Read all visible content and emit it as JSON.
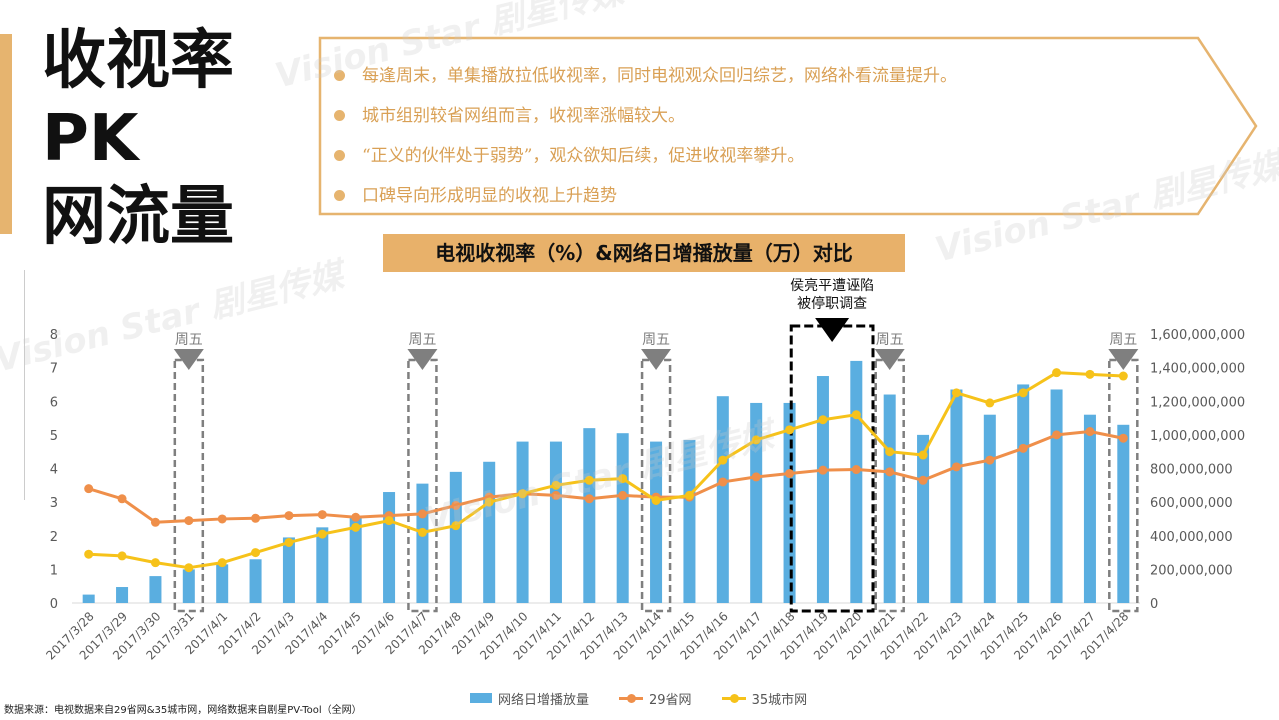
{
  "title_lines": [
    "收视率",
    "PK",
    "网流量"
  ],
  "bullets": [
    "每逢周末，单集播放拉低收视率，同时电视观众回归综艺，网络补看流量提升。",
    "城市组别较省网组而言，收视率涨幅较大。",
    "“正义的伙伴处于弱势”，观众欲知后续，促进收视率攀升。",
    "口碑导向形成明显的收视上升趋势"
  ],
  "chart_title": "电视收视率（%）&网络日增播放量（万）对比",
  "source_note": "数据来源：电视数据来自29省网&35城市网，网络数据来自剧星PV-Tool（全网）",
  "watermark": "Vision Star 剧星传媒",
  "colors": {
    "bar": "#5aaee0",
    "line29": "#ef8f4a",
    "line35": "#f6c21a",
    "accent": "#e6b46f",
    "bullet_text": "#d9a055",
    "marker": "#7f7f7f"
  },
  "chart_data": {
    "type": "bar+line",
    "categories": [
      "2017/3/28",
      "2017/3/29",
      "2017/3/30",
      "2017/3/31",
      "2017/4/1",
      "2017/4/2",
      "2017/4/3",
      "2017/4/4",
      "2017/4/5",
      "2017/4/6",
      "2017/4/7",
      "2017/4/8",
      "2017/4/9",
      "2017/4/10",
      "2017/4/11",
      "2017/4/12",
      "2017/4/13",
      "2017/4/14",
      "2017/4/15",
      "2017/4/16",
      "2017/4/17",
      "2017/4/18",
      "2017/4/19",
      "2017/4/20",
      "2017/4/21",
      "2017/4/22",
      "2017/4/23",
      "2017/4/24",
      "2017/4/25",
      "2017/4/26",
      "2017/4/27",
      "2017/4/28"
    ],
    "bar_series": {
      "name": "网络日增播放量",
      "values": [
        50000000,
        95000000,
        160000000,
        200000000,
        230000000,
        260000000,
        390000000,
        450000000,
        510000000,
        660000000,
        710000000,
        780000000,
        840000000,
        960000000,
        960000000,
        1040000000,
        1010000000,
        960000000,
        970000000,
        1230000000,
        1190000000,
        1190000000,
        1350000000,
        1440000000,
        1240000000,
        1000000000,
        1270000000,
        1120000000,
        1300000000,
        1270000000,
        1120000000,
        1060000000
      ]
    },
    "line_series": [
      {
        "name": "29省网",
        "values": [
          3.4,
          3.1,
          2.4,
          2.45,
          2.5,
          2.52,
          2.6,
          2.63,
          2.55,
          2.6,
          2.65,
          2.9,
          3.15,
          3.25,
          3.2,
          3.1,
          3.2,
          3.15,
          3.15,
          3.6,
          3.75,
          3.85,
          3.95,
          3.97,
          3.9,
          3.65,
          4.05,
          4.25,
          4.6,
          5.0,
          5.1,
          4.9
        ]
      },
      {
        "name": "35城市网",
        "values": [
          1.45,
          1.4,
          1.2,
          1.05,
          1.2,
          1.5,
          1.8,
          2.05,
          2.25,
          2.45,
          2.1,
          2.3,
          3.0,
          3.25,
          3.5,
          3.65,
          3.7,
          3.05,
          3.2,
          4.25,
          4.85,
          5.15,
          5.45,
          5.6,
          4.5,
          4.4,
          6.25,
          5.95,
          6.25,
          6.85,
          6.8,
          6.75
        ]
      }
    ],
    "ylim_left": [
      0,
      8
    ],
    "yticks_left": [
      "0",
      "1",
      "2",
      "3",
      "4",
      "5",
      "6",
      "7",
      "8"
    ],
    "ylim_right": [
      0,
      1600000000
    ],
    "yticks_right": [
      "0",
      "200,000,000",
      "400,000,000",
      "600,000,000",
      "800,000,000",
      "1,000,000,000",
      "1,200,000,000",
      "1,400,000,000",
      "1,600,000,000"
    ],
    "friday_markers": {
      "label": "周五",
      "categories": [
        "2017/3/31",
        "2017/4/7",
        "2017/4/14",
        "2017/4/21",
        "2017/4/28"
      ]
    },
    "event": {
      "category_from": "2017/4/19",
      "category_to": "2017/4/20",
      "lines": [
        "侯亮平遭诬陷",
        "被停职调查"
      ]
    },
    "legend": [
      "网络日增播放量",
      "29省网",
      "35城市网"
    ]
  }
}
